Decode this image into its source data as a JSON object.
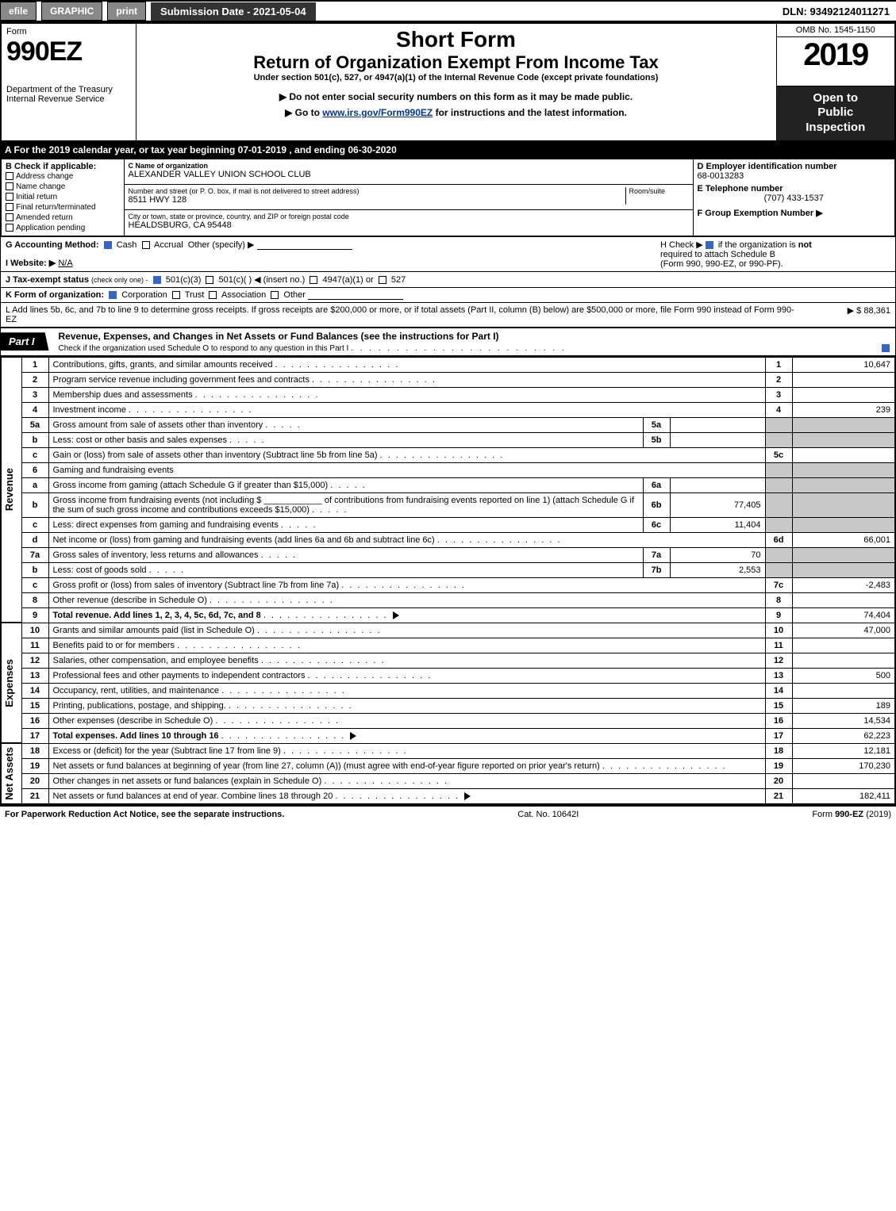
{
  "top_bar": {
    "efile": "efile",
    "graphic": "GRAPHIC",
    "print": "print",
    "submission_label": "Submission Date - 2021-05-04",
    "dln": "DLN: 93492124011271"
  },
  "header": {
    "form_word": "Form",
    "form_no": "990EZ",
    "dept1": "Department of the Treasury",
    "dept2": "Internal Revenue Service",
    "short_form": "Short Form",
    "main_title": "Return of Organization Exempt From Income Tax",
    "subtitle": "Under section 501(c), 527, or 4947(a)(1) of the Internal Revenue Code (except private foundations)",
    "warn": "▶ Do not enter social security numbers on this form as it may be made public.",
    "goto_pre": "▶ Go to ",
    "goto_link": "www.irs.gov/Form990EZ",
    "goto_post": " for instructions and the latest information.",
    "omb": "OMB No. 1545-1150",
    "year": "2019",
    "open_l1": "Open to",
    "open_l2": "Public",
    "open_l3": "Inspection"
  },
  "period_bar": "A  For the 2019 calendar year, or tax year beginning 07-01-2019 , and ending 06-30-2020",
  "box_b": {
    "title": "B  Check if applicable:",
    "items": [
      "Address change",
      "Name change",
      "Initial return",
      "Final return/terminated",
      "Amended return",
      "Application pending"
    ]
  },
  "box_c": {
    "label": "C Name of organization",
    "name": "ALEXANDER VALLEY UNION SCHOOL CLUB",
    "street_label": "Number and street (or P. O. box, if mail is not delivered to street address)",
    "room_label": "Room/suite",
    "street": "8511 HWY 128",
    "city_label": "City or town, state or province, country, and ZIP or foreign postal code",
    "city": "HEALDSBURG, CA  95448"
  },
  "box_d": {
    "label": "D Employer identification number",
    "ein": "68-0013283",
    "tel_label": "E Telephone number",
    "tel": "(707) 433-1537",
    "grp_label": "F Group Exemption Number   ▶"
  },
  "line_g": {
    "label": "G Accounting Method:",
    "cash": "Cash",
    "accrual": "Accrual",
    "other": "Other (specify) ▶"
  },
  "line_h": {
    "pre": "H  Check ▶",
    "post": " if the organization is ",
    "not": "not",
    "l2": "required to attach Schedule B",
    "l3": "(Form 990, 990-EZ, or 990-PF)."
  },
  "line_i": {
    "label": "I Website: ▶",
    "val": "N/A"
  },
  "line_j": {
    "label": "J Tax-exempt status",
    "note": "(check only one) -",
    "o1": "501(c)(3)",
    "o2": "501(c)(  ) ◀ (insert no.)",
    "o3": "4947(a)(1) or",
    "o4": "527"
  },
  "line_k": {
    "label": "K Form of organization:",
    "o1": "Corporation",
    "o2": "Trust",
    "o3": "Association",
    "o4": "Other"
  },
  "line_l": {
    "text": "L Add lines 5b, 6c, and 7b to line 9 to determine gross receipts. If gross receipts are $200,000 or more, or if total assets (Part II, column (B) below) are $500,000 or more, file Form 990 instead of Form 990-EZ",
    "amount": "▶ $ 88,361"
  },
  "part1": {
    "label": "Part I",
    "title": "Revenue, Expenses, and Changes in Net Assets or Fund Balances (see the instructions for Part I)",
    "check_line": "Check if the organization used Schedule O to respond to any question in this Part I"
  },
  "sections": {
    "revenue": "Revenue",
    "expenses": "Expenses",
    "net_assets": "Net Assets"
  },
  "rows": [
    {
      "sec": "rev",
      "ln": "1",
      "desc": "Contributions, gifts, grants, and similar amounts received",
      "num": "1",
      "val": "10,647"
    },
    {
      "sec": "rev",
      "ln": "2",
      "desc": "Program service revenue including government fees and contracts",
      "num": "2",
      "val": ""
    },
    {
      "sec": "rev",
      "ln": "3",
      "desc": "Membership dues and assessments",
      "num": "3",
      "val": ""
    },
    {
      "sec": "rev",
      "ln": "4",
      "desc": "Investment income",
      "num": "4",
      "val": "239"
    },
    {
      "sec": "rev",
      "ln": "5a",
      "desc": "Gross amount from sale of assets other than inventory",
      "sub_ln": "5a",
      "sub_val": "",
      "shade_right": true
    },
    {
      "sec": "rev",
      "ln": "b",
      "desc": "Less: cost or other basis and sales expenses",
      "sub_ln": "5b",
      "sub_val": "",
      "shade_right": true
    },
    {
      "sec": "rev",
      "ln": "c",
      "desc": "Gain or (loss) from sale of assets other than inventory (Subtract line 5b from line 5a)",
      "num": "5c",
      "val": ""
    },
    {
      "sec": "rev",
      "ln": "6",
      "desc": "Gaming and fundraising events",
      "plain": true,
      "shade_right": true
    },
    {
      "sec": "rev",
      "ln": "a",
      "desc": "Gross income from gaming (attach Schedule G if greater than $15,000)",
      "sub_ln": "6a",
      "sub_val": "",
      "shade_right": true
    },
    {
      "sec": "rev",
      "ln": "b",
      "desc": "Gross income from fundraising events (not including $ ____________ of contributions from fundraising events reported on line 1) (attach Schedule G if the sum of such gross income and contributions exceeds $15,000)",
      "sub_ln": "6b",
      "sub_val": "77,405",
      "shade_right": true
    },
    {
      "sec": "rev",
      "ln": "c",
      "desc": "Less: direct expenses from gaming and fundraising events",
      "sub_ln": "6c",
      "sub_val": "11,404",
      "shade_right": true
    },
    {
      "sec": "rev",
      "ln": "d",
      "desc": "Net income or (loss) from gaming and fundraising events (add lines 6a and 6b and subtract line 6c)",
      "num": "6d",
      "val": "66,001"
    },
    {
      "sec": "rev",
      "ln": "7a",
      "desc": "Gross sales of inventory, less returns and allowances",
      "sub_ln": "7a",
      "sub_val": "70",
      "shade_right": true
    },
    {
      "sec": "rev",
      "ln": "b",
      "desc": "Less: cost of goods sold",
      "sub_ln": "7b",
      "sub_val": "2,553",
      "shade_right": true
    },
    {
      "sec": "rev",
      "ln": "c",
      "desc": "Gross profit or (loss) from sales of inventory (Subtract line 7b from line 7a)",
      "num": "7c",
      "val": "-2,483"
    },
    {
      "sec": "rev",
      "ln": "8",
      "desc": "Other revenue (describe in Schedule O)",
      "num": "8",
      "val": ""
    },
    {
      "sec": "rev",
      "ln": "9",
      "desc": "Total revenue. Add lines 1, 2, 3, 4, 5c, 6d, 7c, and 8",
      "num": "9",
      "val": "74,404",
      "bold": true,
      "arrow": true
    },
    {
      "sec": "exp",
      "ln": "10",
      "desc": "Grants and similar amounts paid (list in Schedule O)",
      "num": "10",
      "val": "47,000"
    },
    {
      "sec": "exp",
      "ln": "11",
      "desc": "Benefits paid to or for members",
      "num": "11",
      "val": ""
    },
    {
      "sec": "exp",
      "ln": "12",
      "desc": "Salaries, other compensation, and employee benefits",
      "num": "12",
      "val": ""
    },
    {
      "sec": "exp",
      "ln": "13",
      "desc": "Professional fees and other payments to independent contractors",
      "num": "13",
      "val": "500"
    },
    {
      "sec": "exp",
      "ln": "14",
      "desc": "Occupancy, rent, utilities, and maintenance",
      "num": "14",
      "val": ""
    },
    {
      "sec": "exp",
      "ln": "15",
      "desc": "Printing, publications, postage, and shipping.",
      "num": "15",
      "val": "189"
    },
    {
      "sec": "exp",
      "ln": "16",
      "desc": "Other expenses (describe in Schedule O)",
      "num": "16",
      "val": "14,534"
    },
    {
      "sec": "exp",
      "ln": "17",
      "desc": "Total expenses. Add lines 10 through 16",
      "num": "17",
      "val": "62,223",
      "bold": true,
      "arrow": true
    },
    {
      "sec": "net",
      "ln": "18",
      "desc": "Excess or (deficit) for the year (Subtract line 17 from line 9)",
      "num": "18",
      "val": "12,181"
    },
    {
      "sec": "net",
      "ln": "19",
      "desc": "Net assets or fund balances at beginning of year (from line 27, column (A)) (must agree with end-of-year figure reported on prior year's return)",
      "num": "19",
      "val": "170,230"
    },
    {
      "sec": "net",
      "ln": "20",
      "desc": "Other changes in net assets or fund balances (explain in Schedule O)",
      "num": "20",
      "val": ""
    },
    {
      "sec": "net",
      "ln": "21",
      "desc": "Net assets or fund balances at end of year. Combine lines 18 through 20",
      "num": "21",
      "val": "182,411",
      "arrow": true
    }
  ],
  "footer": {
    "left": "For Paperwork Reduction Act Notice, see the separate instructions.",
    "mid": "Cat. No. 10642I",
    "right_pre": "Form ",
    "right_form": "990-EZ",
    "right_post": " (2019)"
  },
  "colors": {
    "black": "#000000",
    "white": "#ffffff",
    "link": "#003399",
    "check_fill": "#3266cc",
    "shade": "#c8c8c8",
    "btn_dark": "#444444",
    "btn_darker": "#333333"
  }
}
